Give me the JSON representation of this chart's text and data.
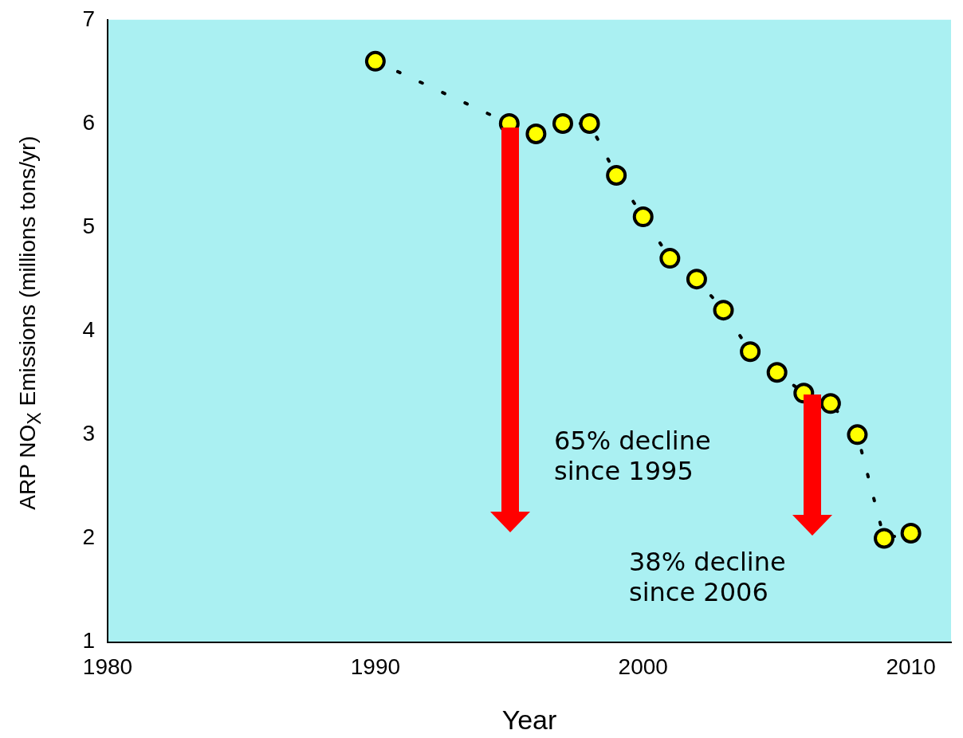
{
  "chart_data": {
    "type": "line",
    "xlabel": "Year",
    "ylabel": "ARP NO$_{X}$ Emissions (millions tons/yr)",
    "x": [
      1990,
      1995,
      1996,
      1997,
      1998,
      1999,
      2000,
      2001,
      2002,
      2003,
      2004,
      2005,
      2006,
      2007,
      2008,
      2009,
      2010
    ],
    "series": [
      {
        "color": "#ffff00",
        "values": [
          6.6,
          6.0,
          5.9,
          6.0,
          6.0,
          5.5,
          5.1,
          4.7,
          4.5,
          4.2,
          3.8,
          3.6,
          3.4,
          3.3,
          3.0,
          2.0,
          2.05
        ]
      }
    ],
    "xlim": [
      1980,
      2011.5
    ],
    "xticks": [
      1980,
      1990,
      2000,
      2010
    ],
    "ylim": [
      1,
      7
    ],
    "yticks": [
      1,
      2,
      3,
      4,
      5,
      6,
      7
    ],
    "annotations": [
      "65% decline\nsince 1995",
      "38% decline\nsince 2006"
    ],
    "grid": false,
    "legend": false,
    "marker": "circle",
    "line_style": "dotted"
  }
}
